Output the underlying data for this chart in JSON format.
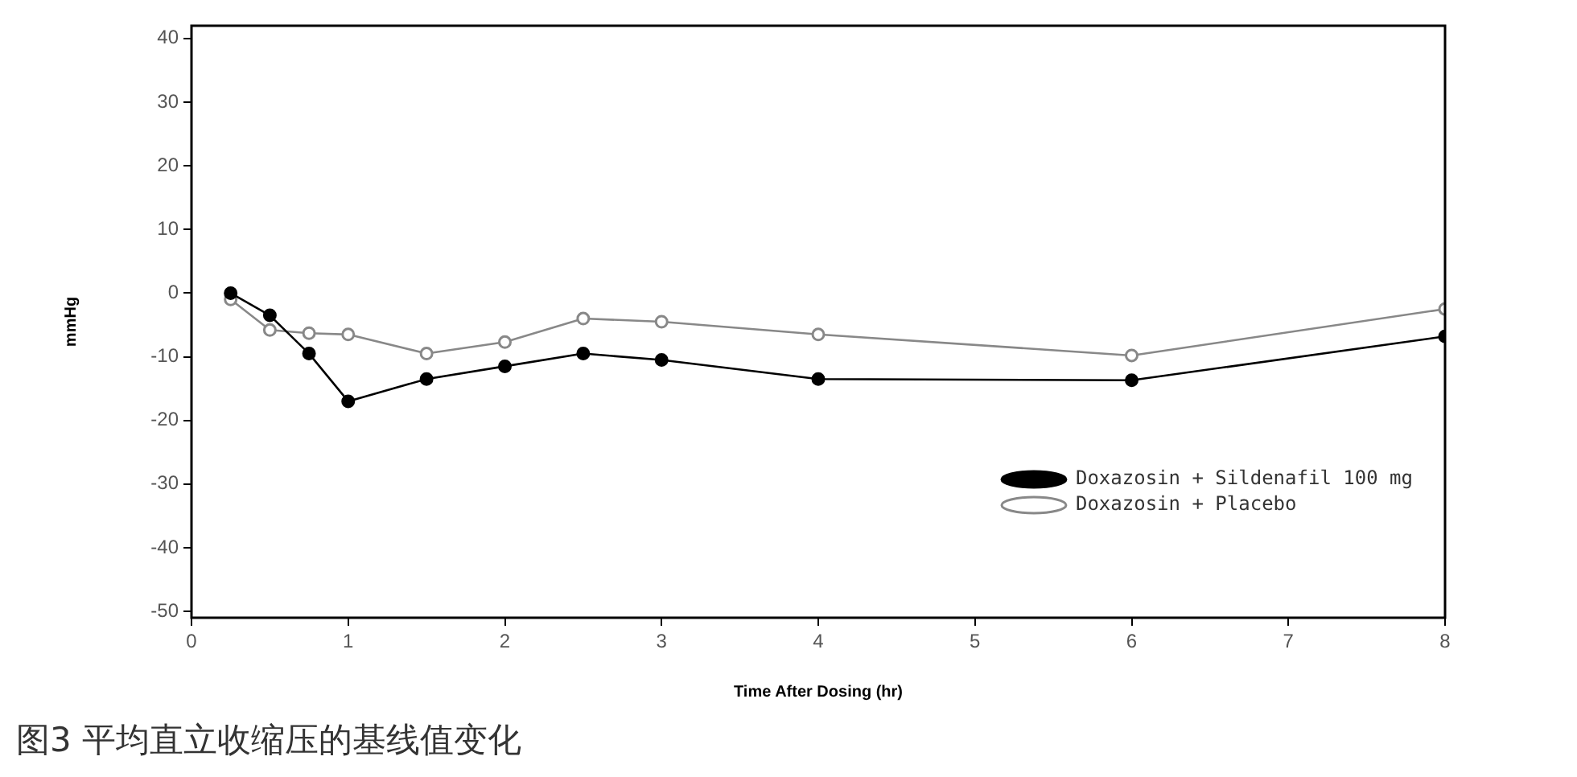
{
  "chart_data": {
    "type": "line",
    "xlabel": "Time After Dosing (hr)",
    "ylabel": "mmHg",
    "annotations": [
      "图3 平均直立收缩压的基线值变化"
    ],
    "x": [
      0.25,
      0.5,
      0.75,
      1,
      1.5,
      2,
      2.5,
      3,
      4,
      6,
      8
    ],
    "series": [
      {
        "name": "Doxazosin + Sildenafil 100 mg",
        "color": "#000000",
        "marker": "circle",
        "values": [
          0,
          -3.5,
          -9.5,
          -17,
          -13.5,
          -11.5,
          -9.5,
          -10.5,
          -13.5,
          -13.7,
          -6.8
        ]
      },
      {
        "name": "Doxazosin + Placebo",
        "color": "#888888",
        "marker": "circle",
        "values": [
          -1,
          -5.8,
          -6.3,
          -6.5,
          -9.5,
          -7.7,
          -4,
          -4.5,
          -6.5,
          -9.8,
          -2.5
        ]
      }
    ],
    "xlim": [
      0,
      8
    ],
    "xticks": [
      0,
      1,
      2,
      3,
      4,
      5,
      6,
      7,
      8
    ],
    "ylim": [
      -51,
      42
    ],
    "yticks": [
      -50,
      -40,
      -30,
      -20,
      -10,
      0,
      10,
      20,
      30,
      40
    ],
    "grid": false,
    "legend": "bottom right",
    "line_style": "solid"
  }
}
